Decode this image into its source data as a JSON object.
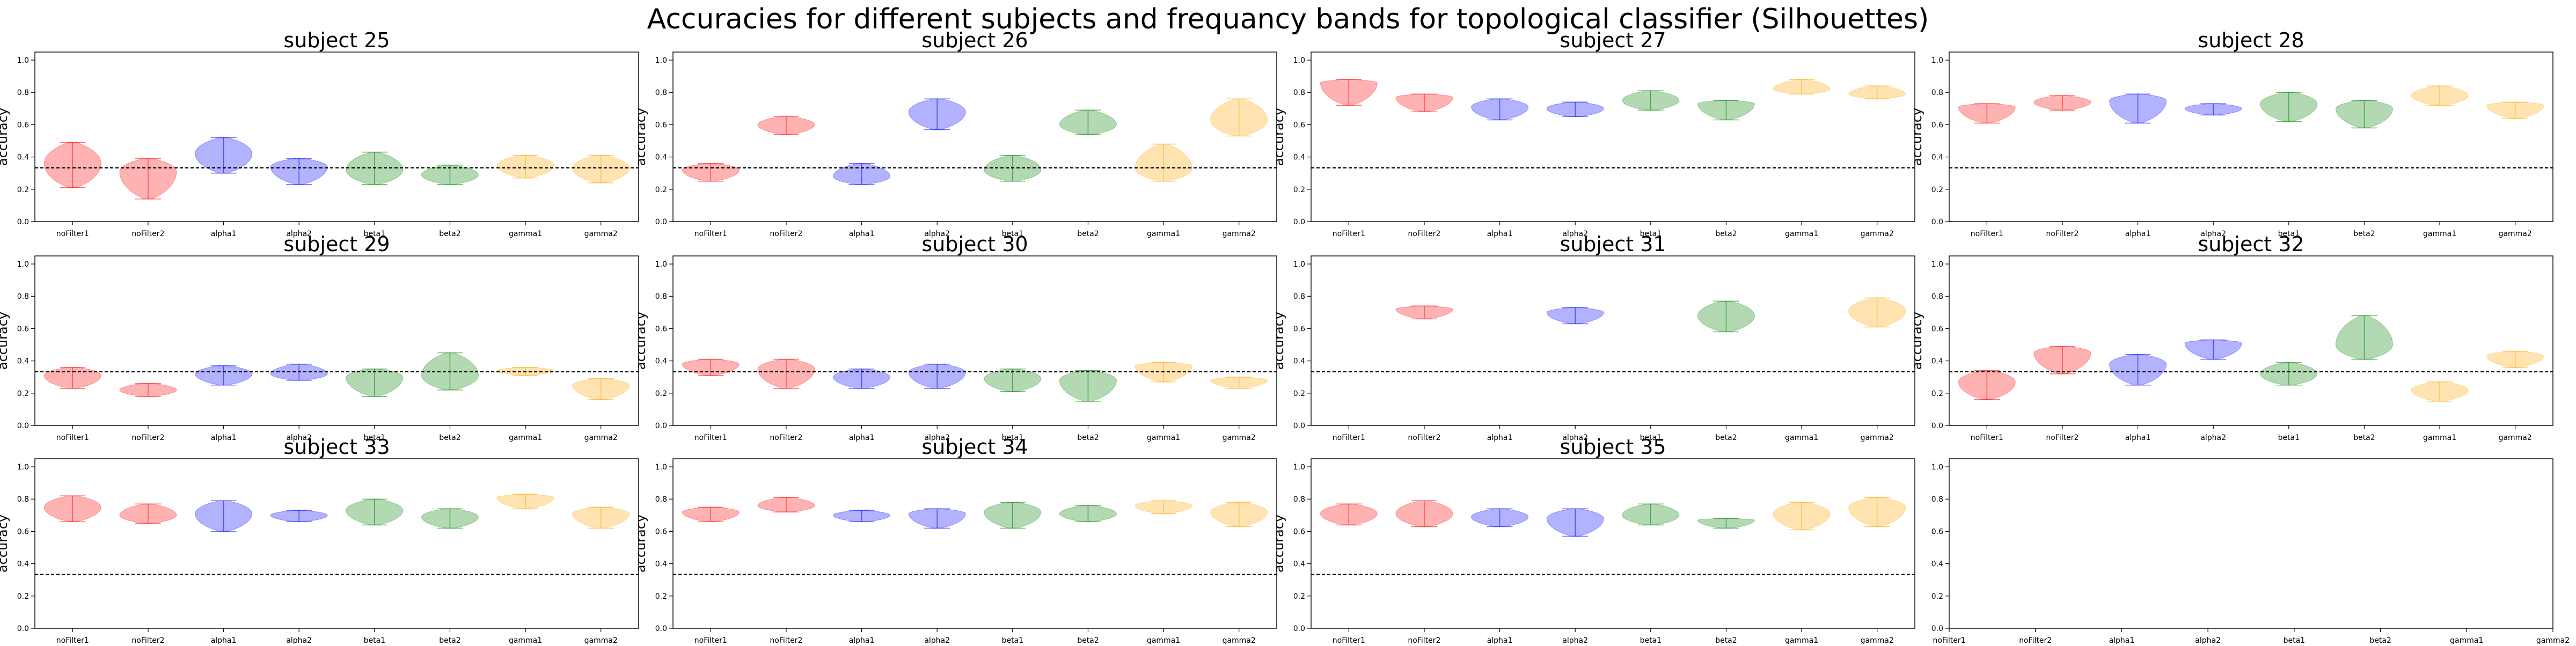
{
  "figure": {
    "title": "Accuracies for different subjects and frequancy bands for topological classifier (Silhouettes)",
    "ylabel": "accuracy",
    "categories": [
      "noFilter1",
      "noFilter2",
      "alpha1",
      "alpha2",
      "beta1",
      "beta2",
      "gamma1",
      "gamma2"
    ],
    "colors": [
      "#ff0000",
      "#ff0000",
      "#0000ff",
      "#0000ff",
      "#008000",
      "#008000",
      "#ffa500",
      "#ffa500"
    ],
    "chance_line": 0.333,
    "ylim": [
      0.0,
      1.05
    ],
    "yticks": [
      "0.0",
      "0.2",
      "0.4",
      "0.6",
      "0.8",
      "1.0"
    ],
    "empty_yticks": [
      "0.0",
      "0.2",
      "0.4",
      "0.6",
      "0.8",
      "1.0"
    ]
  },
  "chart_data": [
    {
      "type": "violin",
      "title": "subject 25",
      "categories": [
        "noFilter1",
        "noFilter2",
        "alpha1",
        "alpha2",
        "beta1",
        "beta2",
        "gamma1",
        "gamma2"
      ],
      "series": [
        {
          "min": [
            0.21,
            0.14,
            0.3,
            0.23,
            0.23,
            0.23,
            0.27,
            0.24
          ],
          "median": [
            0.36,
            0.31,
            0.42,
            0.34,
            0.32,
            0.29,
            0.35,
            0.33
          ],
          "max": [
            0.49,
            0.39,
            0.52,
            0.39,
            0.43,
            0.35,
            0.41,
            0.41
          ]
        }
      ]
    },
    {
      "type": "violin",
      "title": "subject 26",
      "categories": [
        "noFilter1",
        "noFilter2",
        "alpha1",
        "alpha2",
        "beta1",
        "beta2",
        "gamma1",
        "gamma2"
      ],
      "series": [
        {
          "min": [
            0.25,
            0.54,
            0.23,
            0.57,
            0.25,
            0.54,
            0.25,
            0.53
          ],
          "median": [
            0.32,
            0.6,
            0.28,
            0.68,
            0.32,
            0.6,
            0.33,
            0.63
          ],
          "max": [
            0.36,
            0.65,
            0.36,
            0.76,
            0.41,
            0.69,
            0.48,
            0.76
          ]
        }
      ]
    },
    {
      "type": "violin",
      "title": "subject 27",
      "categories": [
        "noFilter1",
        "noFilter2",
        "alpha1",
        "alpha2",
        "beta1",
        "beta2",
        "gamma1",
        "gamma2"
      ],
      "series": [
        {
          "min": [
            0.72,
            0.68,
            0.63,
            0.65,
            0.69,
            0.63,
            0.79,
            0.76
          ],
          "median": [
            0.86,
            0.77,
            0.71,
            0.7,
            0.75,
            0.73,
            0.82,
            0.79
          ],
          "max": [
            0.88,
            0.79,
            0.76,
            0.74,
            0.81,
            0.75,
            0.88,
            0.84
          ]
        }
      ]
    },
    {
      "type": "violin",
      "title": "subject 28",
      "categories": [
        "noFilter1",
        "noFilter2",
        "alpha1",
        "alpha2",
        "beta1",
        "beta2",
        "gamma1",
        "gamma2"
      ],
      "series": [
        {
          "min": [
            0.61,
            0.69,
            0.61,
            0.66,
            0.62,
            0.58,
            0.72,
            0.64
          ],
          "median": [
            0.71,
            0.74,
            0.75,
            0.7,
            0.73,
            0.7,
            0.78,
            0.72
          ],
          "max": [
            0.73,
            0.78,
            0.79,
            0.73,
            0.8,
            0.75,
            0.84,
            0.74
          ]
        }
      ]
    },
    {
      "type": "violin",
      "title": "subject 29",
      "categories": [
        "noFilter1",
        "noFilter2",
        "alpha1",
        "alpha2",
        "beta1",
        "beta2",
        "gamma1",
        "gamma2"
      ],
      "series": [
        {
          "min": [
            0.23,
            0.18,
            0.25,
            0.28,
            0.18,
            0.22,
            0.31,
            0.16
          ],
          "median": [
            0.31,
            0.22,
            0.32,
            0.32,
            0.3,
            0.31,
            0.34,
            0.25
          ],
          "max": [
            0.36,
            0.26,
            0.37,
            0.38,
            0.35,
            0.45,
            0.36,
            0.29
          ]
        }
      ]
    },
    {
      "type": "violin",
      "title": "subject 30",
      "categories": [
        "noFilter1",
        "noFilter2",
        "alpha1",
        "alpha2",
        "beta1",
        "beta2",
        "gamma1",
        "gamma2"
      ],
      "series": [
        {
          "min": [
            0.31,
            0.23,
            0.23,
            0.23,
            0.21,
            0.15,
            0.27,
            0.23
          ],
          "median": [
            0.38,
            0.35,
            0.3,
            0.33,
            0.29,
            0.28,
            0.37,
            0.28
          ],
          "max": [
            0.41,
            0.41,
            0.35,
            0.38,
            0.35,
            0.34,
            0.39,
            0.3
          ]
        }
      ]
    },
    {
      "type": "violin",
      "title": "subject 31",
      "categories": [
        "noFilter1",
        "noFilter2",
        "alpha1",
        "alpha2",
        "beta1",
        "beta2",
        "gamma1",
        "gamma2"
      ],
      "series": [
        {
          "min": [
            null,
            0.66,
            null,
            0.63,
            null,
            0.58,
            null,
            0.61
          ],
          "median": [
            null,
            0.72,
            null,
            0.7,
            null,
            0.68,
            null,
            0.71
          ],
          "max": [
            null,
            0.74,
            null,
            0.73,
            null,
            0.77,
            null,
            0.79
          ]
        }
      ]
    },
    {
      "type": "violin",
      "title": "subject 32",
      "categories": [
        "noFilter1",
        "noFilter2",
        "alpha1",
        "alpha2",
        "beta1",
        "beta2",
        "gamma1",
        "gamma2"
      ],
      "series": [
        {
          "min": [
            0.16,
            0.32,
            0.25,
            0.41,
            0.25,
            0.41,
            0.15,
            0.36
          ],
          "median": [
            0.27,
            0.45,
            0.38,
            0.51,
            0.32,
            0.5,
            0.22,
            0.43
          ],
          "max": [
            0.34,
            0.49,
            0.44,
            0.53,
            0.39,
            0.68,
            0.27,
            0.46
          ]
        }
      ]
    },
    {
      "type": "violin",
      "title": "subject 33",
      "categories": [
        "noFilter1",
        "noFilter2",
        "alpha1",
        "alpha2",
        "beta1",
        "beta2",
        "gamma1",
        "gamma2"
      ],
      "series": [
        {
          "min": [
            0.66,
            0.65,
            0.6,
            0.66,
            0.64,
            0.62,
            0.74,
            0.62
          ],
          "median": [
            0.75,
            0.7,
            0.71,
            0.7,
            0.73,
            0.69,
            0.81,
            0.71
          ],
          "max": [
            0.82,
            0.77,
            0.79,
            0.73,
            0.8,
            0.74,
            0.83,
            0.75
          ]
        }
      ]
    },
    {
      "type": "violin",
      "title": "subject 34",
      "categories": [
        "noFilter1",
        "noFilter2",
        "alpha1",
        "alpha2",
        "beta1",
        "beta2",
        "gamma1",
        "gamma2"
      ],
      "series": [
        {
          "min": [
            0.66,
            0.72,
            0.66,
            0.62,
            0.62,
            0.66,
            0.71,
            0.63
          ],
          "median": [
            0.72,
            0.76,
            0.7,
            0.71,
            0.72,
            0.71,
            0.76,
            0.72
          ],
          "max": [
            0.75,
            0.81,
            0.73,
            0.74,
            0.78,
            0.76,
            0.79,
            0.78
          ]
        }
      ]
    },
    {
      "type": "violin",
      "title": "subject 35",
      "categories": [
        "noFilter1",
        "noFilter2",
        "alpha1",
        "alpha2",
        "beta1",
        "beta2",
        "gamma1",
        "gamma2"
      ],
      "series": [
        {
          "min": [
            0.64,
            0.63,
            0.63,
            0.57,
            0.64,
            0.62,
            0.61,
            0.63
          ],
          "median": [
            0.71,
            0.71,
            0.69,
            0.68,
            0.7,
            0.67,
            0.71,
            0.75
          ],
          "max": [
            0.77,
            0.79,
            0.74,
            0.74,
            0.77,
            0.68,
            0.78,
            0.81
          ]
        }
      ]
    }
  ]
}
